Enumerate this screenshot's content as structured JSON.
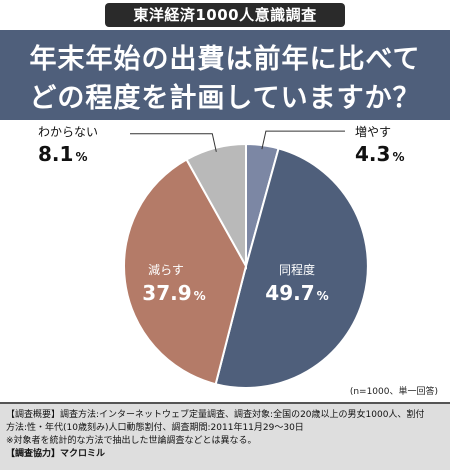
{
  "header": {
    "survey_tag": "東洋経済1000人意識調査",
    "title_line1": "年末年始の出費は前年に比べて",
    "title_line2": "どの程度を計画していますか？"
  },
  "colors": {
    "title_band": "#4f5f7b",
    "slice_increase": "#7c87a4",
    "slice_same": "#4f5f7b",
    "slice_decrease": "#b47b68",
    "slice_unknown": "#b9b9b9"
  },
  "chart_data": {
    "type": "pie",
    "unit": "%",
    "slices": [
      {
        "label": "増やす",
        "value": 4.3,
        "color": "#7c87a4"
      },
      {
        "label": "同程度",
        "value": 49.7,
        "color": "#4f5f7b"
      },
      {
        "label": "減らす",
        "value": 37.9,
        "color": "#b47b68"
      },
      {
        "label": "わからない",
        "value": 8.1,
        "color": "#b9b9b9"
      }
    ],
    "note": "(n=1000、単一回答)"
  },
  "footer": {
    "line1": "【調査概要】調査方法:インターネットウェブ定量調査、調査対象:全国の20歳以上の男女1000人、割付",
    "line2": "方法:性・年代(10歳刻み)人口動態割付、調査期間:2011年11月29〜30日",
    "line3": "※対象者を統計的な方法で抽出した世論調査などとは異なる。",
    "line4": "【調査協力】マクロミル"
  }
}
